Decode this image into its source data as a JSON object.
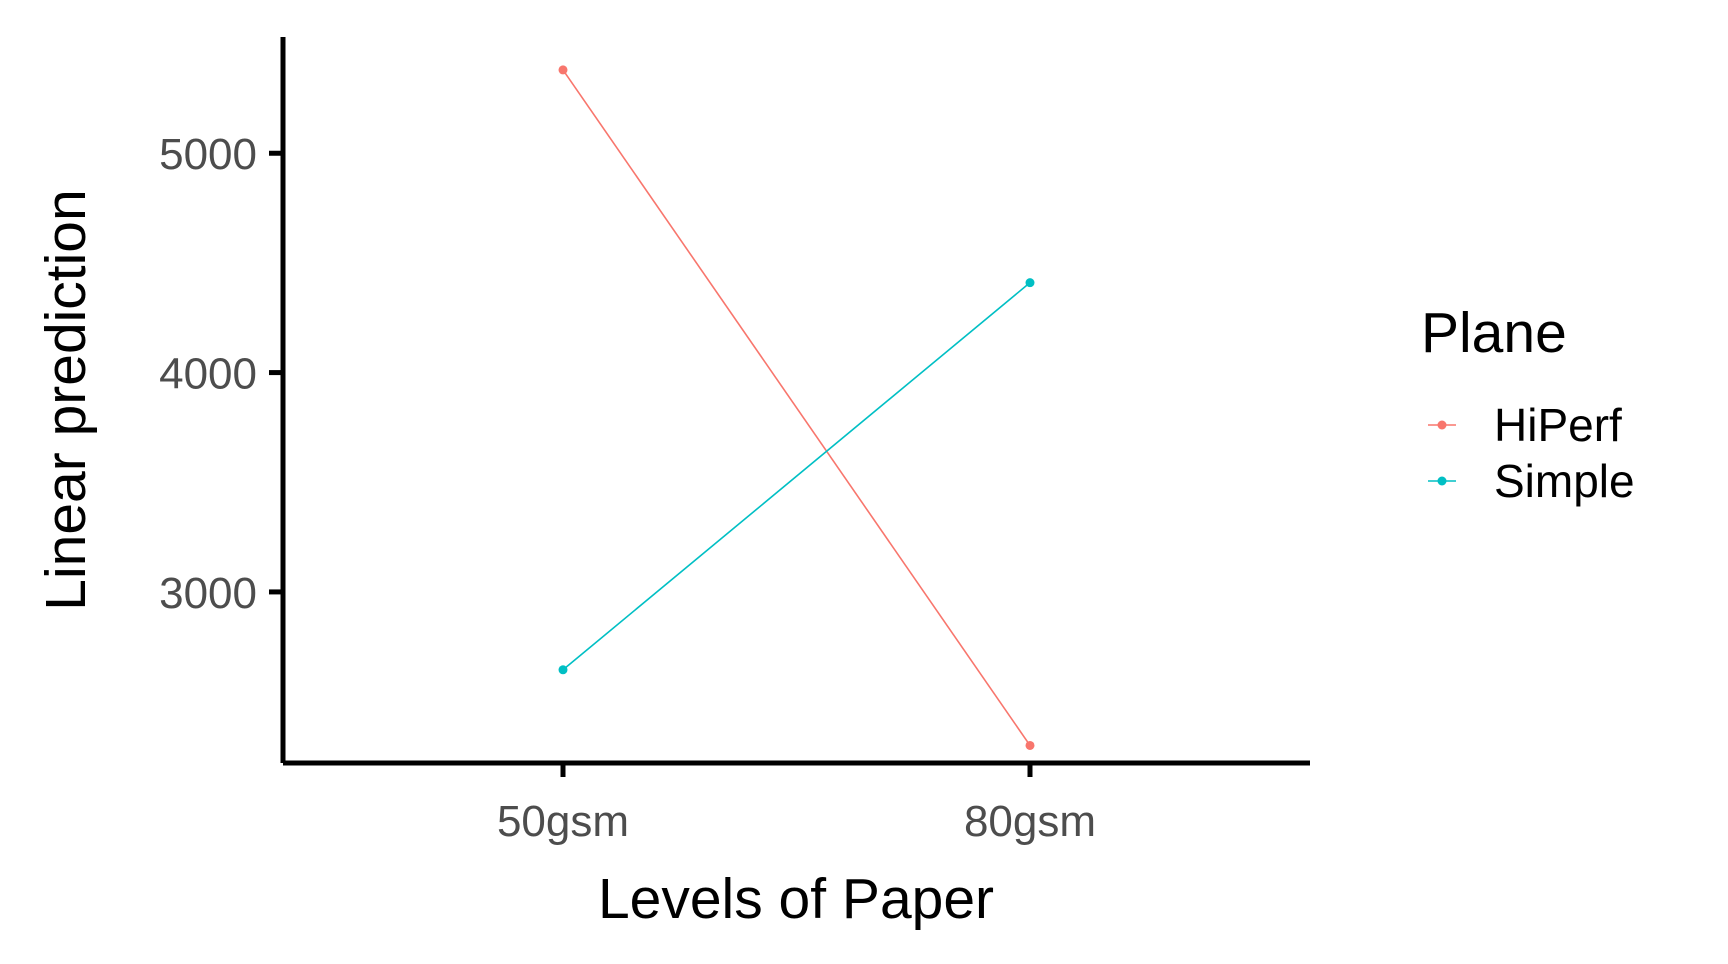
{
  "chart_data": {
    "type": "line",
    "x": [
      "50gsm",
      "80gsm"
    ],
    "xlabel": "Levels of Paper",
    "ylabel": "Linear prediction",
    "yticks": [
      3000,
      4000,
      5000
    ],
    "ylim": [
      2220,
      5530
    ],
    "grid": false,
    "legend": {
      "title": "Plane",
      "placement": "right"
    },
    "series": [
      {
        "name": "HiPerf",
        "values": [
          5380,
          2300
        ],
        "color": "#F8766D"
      },
      {
        "name": "Simple",
        "values": [
          2645,
          4410
        ],
        "color": "#00BFC4"
      }
    ]
  }
}
